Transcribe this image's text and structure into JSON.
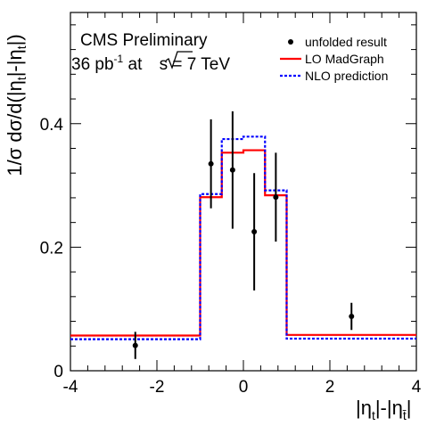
{
  "chart_data": {
    "type": "step",
    "ylabel": "1/σ dσ/d(|η_t|-|η_t̄|)",
    "xlabel": "|η_t|-|η_t̄|",
    "xlim": [
      -4,
      4
    ],
    "ylim": [
      0,
      0.58
    ],
    "x_ticks": [
      {
        "v": -4,
        "label": "-4"
      },
      {
        "v": -2,
        "label": "-2"
      },
      {
        "v": 0,
        "label": "0"
      },
      {
        "v": 2,
        "label": "2"
      },
      {
        "v": 4,
        "label": "4"
      }
    ],
    "y_ticks": [
      {
        "v": 0,
        "label": "0"
      },
      {
        "v": 0.2,
        "label": "0.2"
      },
      {
        "v": 0.4,
        "label": "0.4"
      }
    ],
    "annotations": {
      "line1": "CMS Preliminary",
      "line2_a": "36 pb",
      "line2_sup": "-1",
      "line2_b": " at ",
      "line2_c": "s = 7 TeV"
    },
    "legend": {
      "placement": "top-right",
      "entries": [
        "unfolded result",
        "LO MadGraph",
        "NLO prediction"
      ]
    },
    "bin_edges": [
      -4,
      -1,
      -0.5,
      0,
      0.5,
      1,
      4
    ],
    "series": [
      {
        "name": "LO MadGraph",
        "style": "line",
        "color": "#ff0000",
        "values": [
          0.057,
          0.281,
          0.353,
          0.357,
          0.284,
          0.058
        ]
      },
      {
        "name": "NLO prediction",
        "style": "dotted",
        "color": "#0000ff",
        "values": [
          0.051,
          0.286,
          0.375,
          0.379,
          0.292,
          0.052
        ]
      }
    ],
    "points": {
      "name": "unfolded result",
      "x": [
        -2.5,
        -0.75,
        -0.25,
        0.25,
        0.75,
        2.5
      ],
      "y": [
        0.041,
        0.335,
        0.325,
        0.225,
        0.281,
        0.088
      ],
      "err": [
        0.022,
        0.072,
        0.095,
        0.095,
        0.072,
        0.022
      ]
    }
  }
}
